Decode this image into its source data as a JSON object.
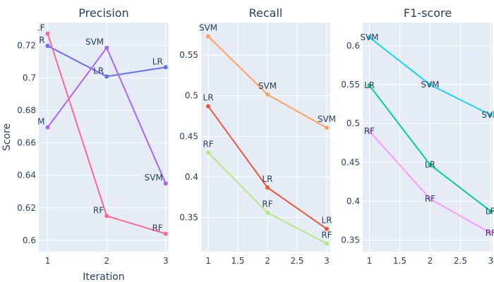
{
  "chart_data": [
    {
      "type": "line",
      "title": "Precision",
      "xlabel": "Iteration",
      "ylabel": "Score",
      "x": [
        1,
        2,
        3
      ],
      "xlim": [
        0.85,
        3.05
      ],
      "ylim": [
        0.593,
        0.734
      ],
      "xticks": [
        1,
        2,
        3
      ],
      "yticks": [
        0.6,
        0.62,
        0.64,
        0.66,
        0.68,
        0.7,
        0.72
      ],
      "ytick_labels": [
        "0.6",
        "0.62",
        "0.64",
        "0.66",
        "0.68",
        "0.7",
        "0.72"
      ],
      "xtick_labels": [
        "1",
        "2",
        "3"
      ],
      "grid": true,
      "series": [
        {
          "name": "LR",
          "color": "#636efa",
          "values": [
            0.7197,
            0.7008,
            0.7065
          ],
          "labels": [
            "R",
            "LR",
            "LR"
          ],
          "label_pos": [
            "left",
            "left",
            "left"
          ]
        },
        {
          "name": "SVM",
          "color": "#ab63fa",
          "values": [
            0.6695,
            0.7185,
            0.635
          ],
          "labels": [
            "M",
            "SVM",
            "SVM"
          ],
          "label_pos": [
            "left",
            "left",
            "left"
          ]
        },
        {
          "name": "RF",
          "color": "#ff6692",
          "values": [
            0.7272,
            0.615,
            0.604
          ],
          "labels": [
            ".F",
            "RF",
            "RF"
          ],
          "label_pos": [
            "left",
            "left",
            "left"
          ]
        }
      ]
    },
    {
      "type": "line",
      "title": "Recall",
      "xlabel": "",
      "ylabel": "",
      "x": [
        1,
        2,
        3
      ],
      "xlim": [
        0.88,
        3.06
      ],
      "ylim": [
        0.308,
        0.59
      ],
      "xticks": [
        1,
        1.5,
        2,
        2.5,
        3
      ],
      "xtick_labels": [
        "1",
        "1.5",
        "2",
        "2.5",
        "3"
      ],
      "yticks": [
        0.35,
        0.4,
        0.45,
        0.5,
        0.55
      ],
      "ytick_labels": [
        "0.35",
        "0.4",
        "0.45",
        "0.5",
        "0.55"
      ],
      "grid": true,
      "series": [
        {
          "name": "SVM",
          "color": "#ffa15a",
          "values": [
            0.573,
            0.5015,
            0.4605
          ],
          "labels": [
            "SVM",
            "SVM",
            "SVM"
          ],
          "label_pos": [
            "top",
            "top",
            "top"
          ]
        },
        {
          "name": "LR",
          "color": "#ef553b",
          "values": [
            0.487,
            0.387,
            0.336
          ],
          "labels": [
            "LR",
            "LR",
            "LR"
          ],
          "label_pos": [
            "top",
            "top",
            "top"
          ]
        },
        {
          "name": "RF",
          "color": "#b6e880",
          "values": [
            0.43,
            0.356,
            0.318
          ],
          "labels": [
            "RF",
            "RF",
            "RF"
          ],
          "label_pos": [
            "top",
            "top",
            "top"
          ]
        }
      ]
    },
    {
      "type": "line",
      "title": "F1-score",
      "xlabel": "",
      "ylabel": "",
      "x": [
        1,
        2,
        3
      ],
      "xlim": [
        0.89,
        3.03
      ],
      "ylim": [
        0.335,
        0.63
      ],
      "xticks": [
        1,
        1.5,
        2,
        2.5,
        3
      ],
      "xtick_labels": [
        "1",
        "1.5",
        "2",
        "2.5",
        "3"
      ],
      "yticks": [
        0.35,
        0.4,
        0.45,
        0.5,
        0.55,
        0.6
      ],
      "ytick_labels": [
        "0.35",
        "0.4",
        "0.45",
        "0.5",
        "0.55",
        "0.6"
      ],
      "grid": true,
      "series": [
        {
          "name": "SVM",
          "color": "#19d3f3",
          "values": [
            0.611,
            0.55,
            0.511
          ],
          "labels": [
            "SVM",
            "SVM",
            "SVM"
          ],
          "label_pos": [
            "center",
            "center",
            "center"
          ]
        },
        {
          "name": "LR",
          "color": "#00cc96",
          "values": [
            0.549,
            0.447,
            0.387
          ],
          "labels": [
            "LR",
            "LR",
            "LR"
          ],
          "label_pos": [
            "center",
            "center",
            "center"
          ]
        },
        {
          "name": "RF",
          "color": "#ff97ff",
          "values": [
            0.49,
            0.403,
            0.359
          ],
          "labels": [
            "RF",
            "RF",
            "RF"
          ],
          "label_pos": [
            "center",
            "center",
            "center"
          ]
        }
      ]
    }
  ]
}
